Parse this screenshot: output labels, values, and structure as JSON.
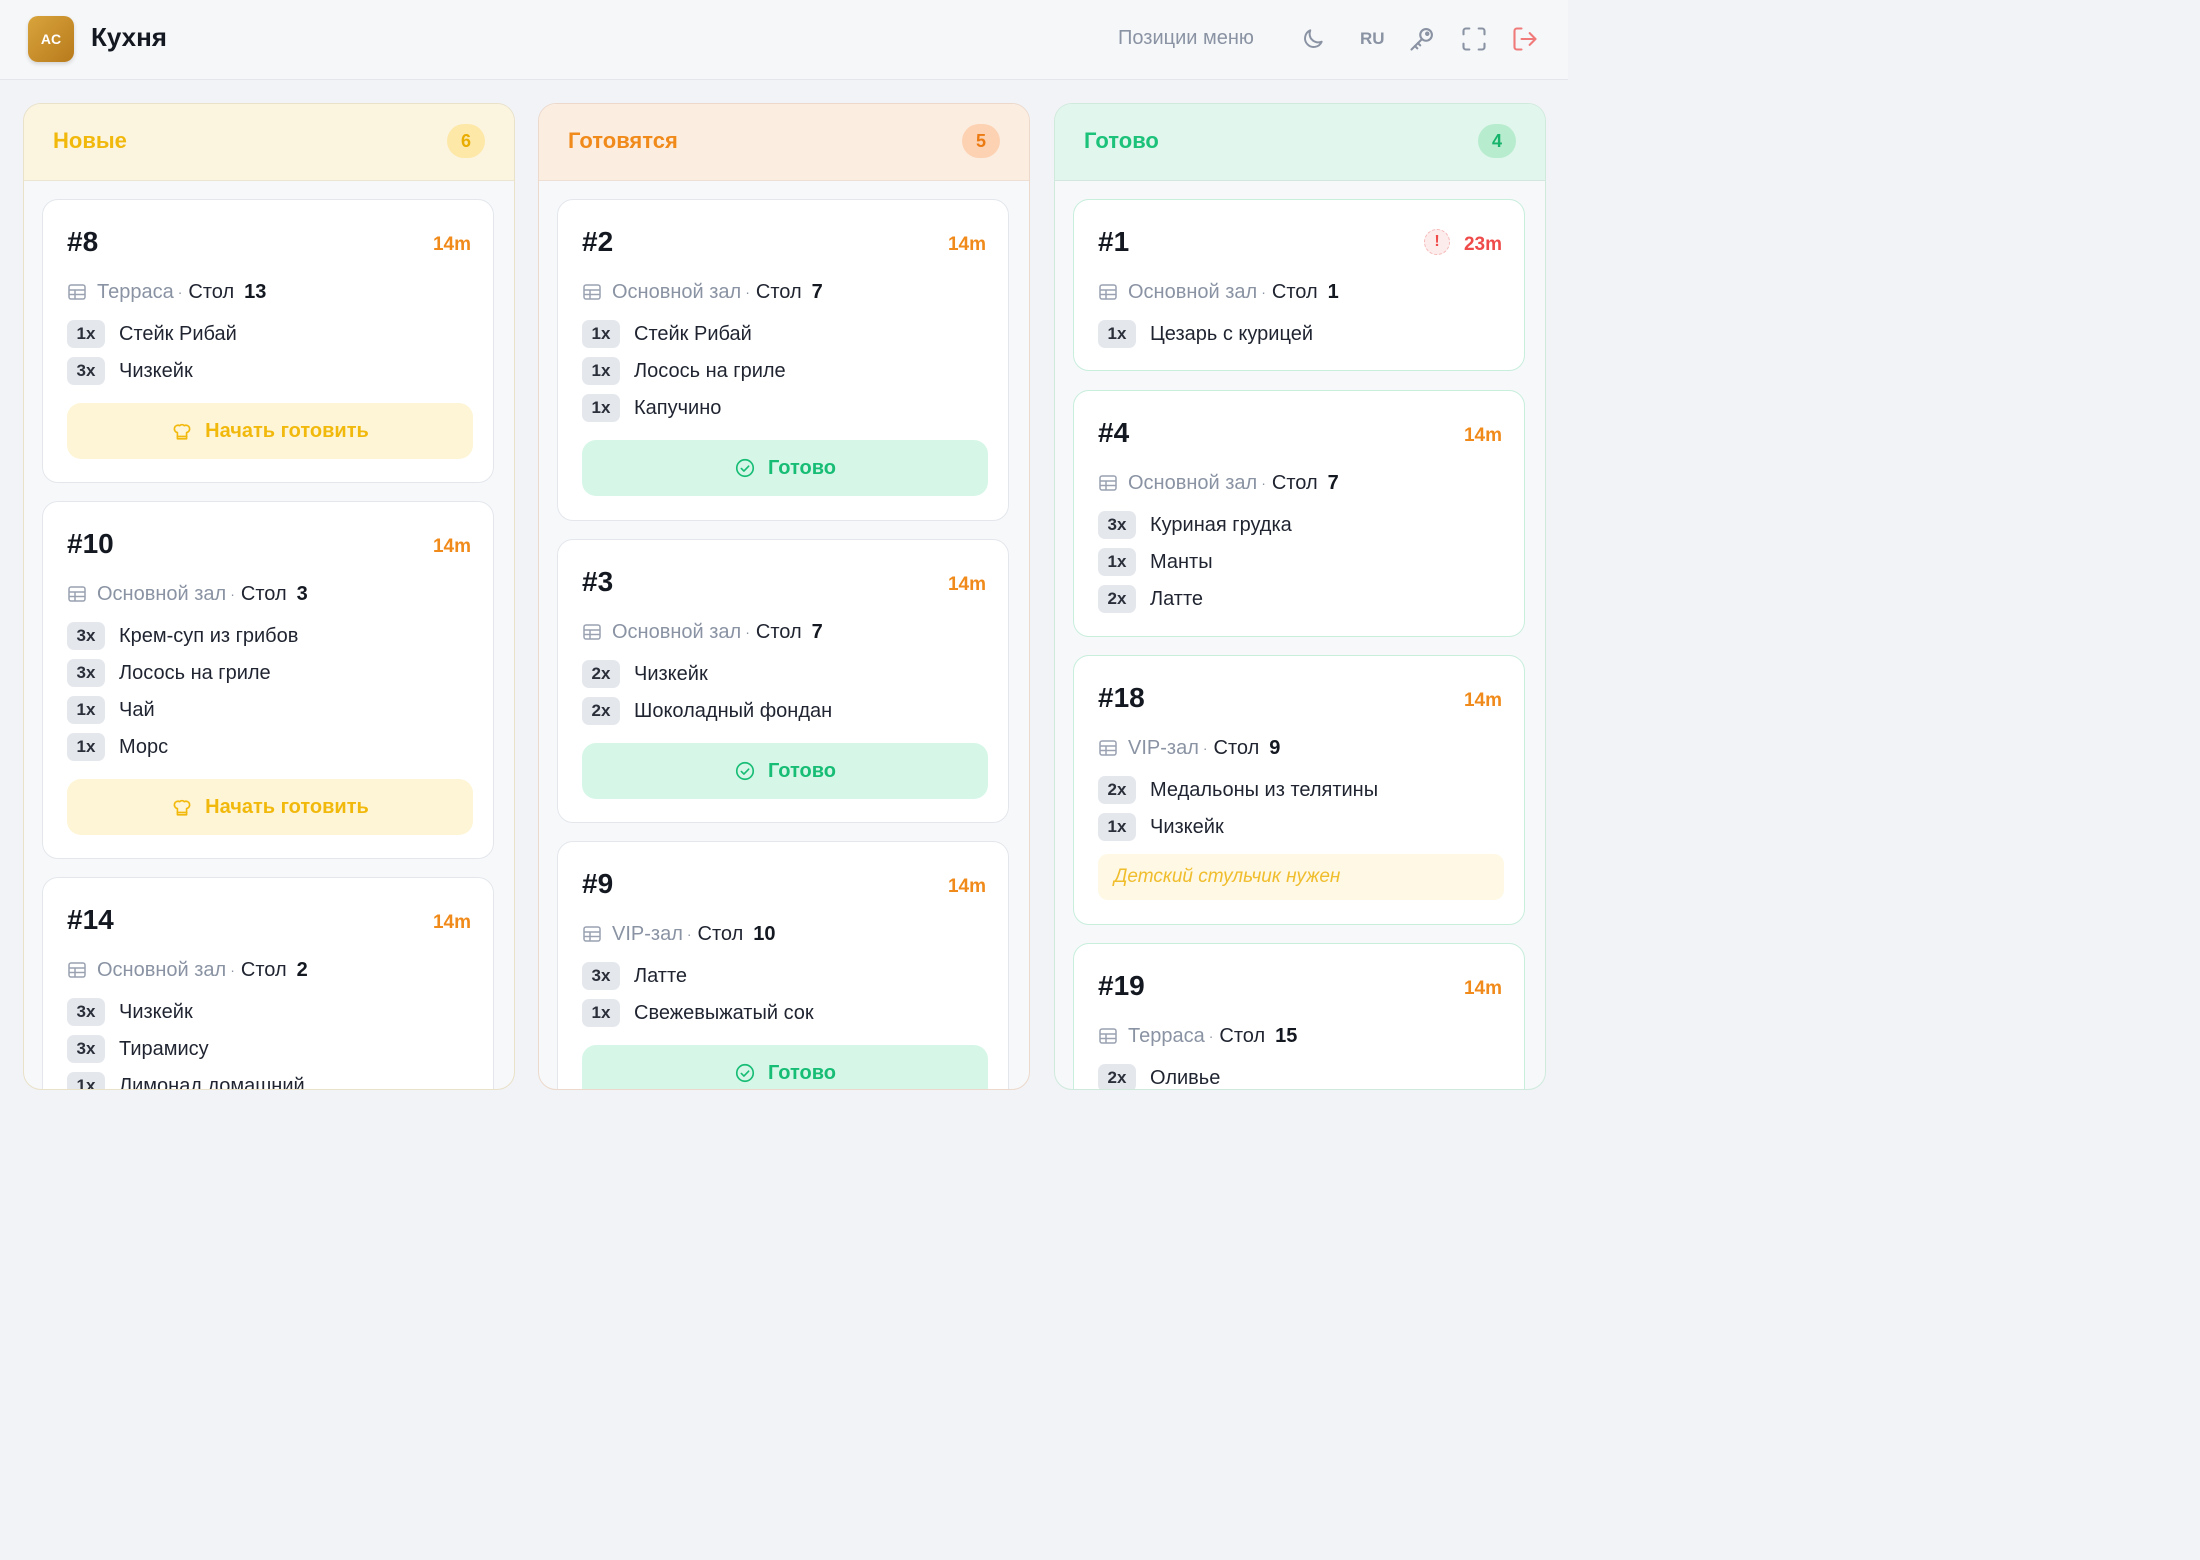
{
  "header": {
    "logo_text": "AC",
    "title": "Кухня",
    "menu_link": "Позиции меню",
    "lang": "RU",
    "icons": [
      "moon-icon",
      "key-icon",
      "fullscreen-icon",
      "logout-icon"
    ]
  },
  "colors": {
    "new": "#f2b90d",
    "cooking": "#f08a1a",
    "ready": "#1cc27a",
    "late": "#ef4b4b"
  },
  "columns": [
    {
      "title": "Новые",
      "count": "6",
      "orders": [
        {
          "num": "#8",
          "time": "14m",
          "hall": "Терраса",
          "stol": "Стол",
          "table": "13",
          "items": [
            {
              "qty": "3x",
              "name": "Чизкейк"
            }
          ],
          "first": {
            "qty": "1x",
            "name": "Стейк Рибай"
          },
          "button": "Начать готовить"
        },
        {
          "num": "#10",
          "time": "14m",
          "hall": "Основной зал",
          "stol": "Стол",
          "table": "3",
          "items": [
            {
              "qty": "3x",
              "name": "Крем-суп из грибов"
            },
            {
              "qty": "3x",
              "name": "Лосось на гриле"
            },
            {
              "qty": "1x",
              "name": "Чай"
            },
            {
              "qty": "1x",
              "name": "Морс"
            }
          ],
          "button": "Начать готовить"
        },
        {
          "num": "#14",
          "time": "14m",
          "hall": "Основной зал",
          "stol": "Стол",
          "table": "2",
          "items": [
            {
              "qty": "3x",
              "name": "Чизкейк"
            },
            {
              "qty": "3x",
              "name": "Тирамису"
            },
            {
              "qty": "1x",
              "name": "Лимонад домашний"
            }
          ]
        }
      ]
    },
    {
      "title": "Готовятся",
      "count": "5",
      "orders": [
        {
          "num": "#2",
          "time": "14m",
          "hall": "Основной зал",
          "stol": "Стол",
          "table": "7",
          "items": [
            {
              "qty": "1x",
              "name": "Стейк Рибай"
            },
            {
              "qty": "1x",
              "name": "Лосось на гриле"
            },
            {
              "qty": "1x",
              "name": "Капучино"
            }
          ],
          "button": "Готово"
        },
        {
          "num": "#3",
          "time": "14m",
          "hall": "Основной зал",
          "stol": "Стол",
          "table": "7",
          "items": [
            {
              "qty": "2x",
              "name": "Чизкейк"
            },
            {
              "qty": "2x",
              "name": "Шоколадный фондан"
            }
          ],
          "button": "Готово"
        },
        {
          "num": "#9",
          "time": "14m",
          "hall": "VIP-зал",
          "stol": "Стол",
          "table": "10",
          "items": [
            {
              "qty": "3x",
              "name": "Латте"
            },
            {
              "qty": "1x",
              "name": "Свежевыжатый сок"
            }
          ],
          "button": "Готово"
        }
      ]
    },
    {
      "title": "Готово",
      "count": "4",
      "orders": [
        {
          "num": "#1",
          "time": "23m",
          "alert": "!",
          "hall": "Основной зал",
          "stol": "Стол",
          "table": "1",
          "items": [
            {
              "qty": "1x",
              "name": "Цезарь с курицей"
            }
          ]
        },
        {
          "num": "#4",
          "time": "14m",
          "hall": "Основной зал",
          "stol": "Стол",
          "table": "7",
          "items": [
            {
              "qty": "3x",
              "name": "Куриная грудка"
            },
            {
              "qty": "1x",
              "name": "Манты"
            },
            {
              "qty": "2x",
              "name": "Латте"
            }
          ]
        },
        {
          "num": "#18",
          "time": "14m",
          "hall": "VIP-зал",
          "stol": "Стол",
          "table": "9",
          "items": [
            {
              "qty": "2x",
              "name": "Медальоны из телятины"
            },
            {
              "qty": "1x",
              "name": "Чизкейк"
            }
          ],
          "note": "Детский стульчик нужен"
        },
        {
          "num": "#19",
          "time": "14m",
          "hall": "Терраса",
          "stol": "Стол",
          "table": "15",
          "items": [
            {
              "qty": "2x",
              "name": "Оливье"
            }
          ]
        }
      ]
    }
  ]
}
